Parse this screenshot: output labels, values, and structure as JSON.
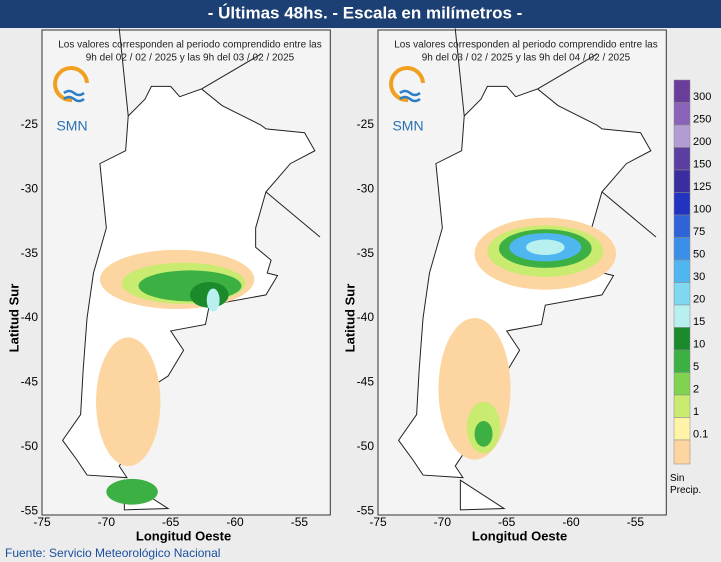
{
  "header": {
    "title": "- Últimas 48hs. - Escala en milímetros -"
  },
  "maps": [
    {
      "note_line1": "Los valores corresponden al periodo comprendido entre las",
      "note_line2": "9h del 02 / 02 / 2025  y las 9h del 03 / 02 / 2025",
      "logo": "SMN",
      "y_label": "Latitud Sur",
      "x_label": "Longitud Oeste",
      "yticks": [
        "-25",
        "-30",
        "-35",
        "-40",
        "-45",
        "-50",
        "-55"
      ],
      "xticks": [
        "-75",
        "-70",
        "-65",
        "-60",
        "-55"
      ]
    },
    {
      "note_line1": "Los valores corresponden al periodo comprendido entre las",
      "note_line2": "9h del 03 / 02 / 2025  y las 9h del 04 / 02 / 2025",
      "logo": "SMN",
      "y_label": "Latitud Sur",
      "x_label": "Longitud Oeste",
      "yticks": [
        "-25",
        "-30",
        "-35",
        "-40",
        "-45",
        "-50",
        "-55"
      ],
      "xticks": [
        "-75",
        "-70",
        "-65",
        "-60",
        "-55"
      ]
    }
  ],
  "legend": {
    "labels": [
      "300",
      "250",
      "200",
      "150",
      "125",
      "100",
      "75",
      "50",
      "30",
      "20",
      "15",
      "10",
      "5",
      "2",
      "1",
      "0.1"
    ],
    "none_label": "Sin Precip."
  },
  "footer": {
    "source": "Fuente: Servicio Meteorológico Nacional"
  }
}
